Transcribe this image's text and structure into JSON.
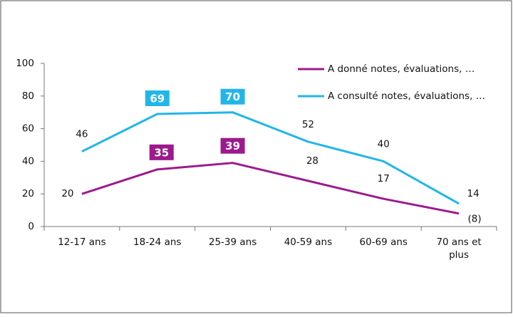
{
  "chart_data": {
    "type": "line",
    "categories": [
      "12-17 ans",
      "18-24 ans",
      "25-39 ans",
      "40-59 ans",
      "60-69 ans",
      "70 ans et plus"
    ],
    "series": [
      {
        "name": "A donné notes, évaluations, …",
        "color": "#9c1a8e",
        "values": [
          20,
          35,
          39,
          28,
          17,
          8
        ],
        "value_labels": [
          "20",
          "35",
          "39",
          "28",
          "17",
          "(8)"
        ]
      },
      {
        "name": "A consulté notes, évaluations, …",
        "color": "#22b6e8",
        "values": [
          46,
          69,
          70,
          52,
          40,
          14
        ]
      }
    ],
    "ylim": [
      0,
      100
    ],
    "yticks": [
      0,
      20,
      40,
      60,
      80,
      100
    ],
    "grid": false,
    "legend": "top-right"
  }
}
